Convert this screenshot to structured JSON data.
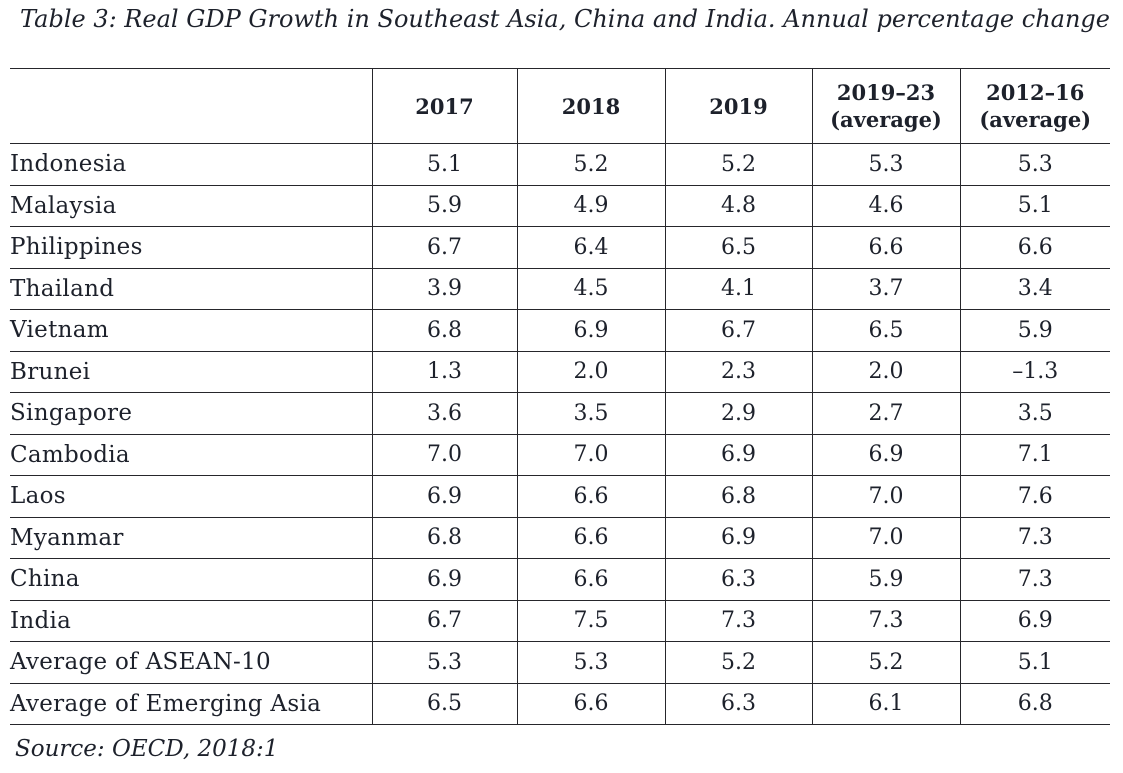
{
  "page": {
    "title": "Table 3: Real GDP Growth in Southeast Asia, China and India. Annual percentage change",
    "source": "Source: OECD, 2018:1"
  },
  "table": {
    "headers": [
      [
        "2017"
      ],
      [
        "2018"
      ],
      [
        "2019"
      ],
      [
        "2019–23",
        "(average)"
      ],
      [
        "2012–16",
        "(average)"
      ]
    ],
    "rows": [
      {
        "label": "Indonesia",
        "values": [
          "5.1",
          "5.2",
          "5.2",
          "5.3",
          "5.3"
        ]
      },
      {
        "label": "Malaysia",
        "values": [
          "5.9",
          "4.9",
          "4.8",
          "4.6",
          "5.1"
        ]
      },
      {
        "label": "Philippines",
        "values": [
          "6.7",
          "6.4",
          "6.5",
          "6.6",
          "6.6"
        ]
      },
      {
        "label": "Thailand",
        "values": [
          "3.9",
          "4.5",
          "4.1",
          "3.7",
          "3.4"
        ]
      },
      {
        "label": "Vietnam",
        "values": [
          "6.8",
          "6.9",
          "6.7",
          "6.5",
          "5.9"
        ]
      },
      {
        "label": "Brunei",
        "values": [
          "1.3",
          "2.0",
          "2.3",
          "2.0",
          "–1.3"
        ]
      },
      {
        "label": "Singapore",
        "values": [
          "3.6",
          "3.5",
          "2.9",
          "2.7",
          "3.5"
        ]
      },
      {
        "label": "Cambodia",
        "values": [
          "7.0",
          "7.0",
          "6.9",
          "6.9",
          "7.1"
        ]
      },
      {
        "label": "Laos",
        "values": [
          "6.9",
          "6.6",
          "6.8",
          "7.0",
          "7.6"
        ]
      },
      {
        "label": "Myanmar",
        "values": [
          "6.8",
          "6.6",
          "6.9",
          "7.0",
          "7.3"
        ]
      },
      {
        "label": "China",
        "values": [
          "6.9",
          "6.6",
          "6.3",
          "5.9",
          "7.3"
        ]
      },
      {
        "label": "India",
        "values": [
          "6.7",
          "7.5",
          "7.3",
          "7.3",
          "6.9"
        ]
      },
      {
        "label": "Average of ASEAN-10",
        "values": [
          "5.3",
          "5.3",
          "5.2",
          "5.2",
          "5.1"
        ]
      },
      {
        "label": "Average of Emerging Asia",
        "values": [
          "6.5",
          "6.6",
          "6.3",
          "6.1",
          "6.8"
        ]
      }
    ]
  },
  "chart_data": {
    "type": "table",
    "title": "Table 3: Real GDP Growth in Southeast Asia, China and India. Annual percentage change",
    "unit": "Annual percentage change",
    "columns": [
      "2017",
      "2018",
      "2019",
      "2019–23 (average)",
      "2012–16 (average)"
    ],
    "categories": [
      "Indonesia",
      "Malaysia",
      "Philippines",
      "Thailand",
      "Vietnam",
      "Brunei",
      "Singapore",
      "Cambodia",
      "Laos",
      "Myanmar",
      "China",
      "India",
      "Average of ASEAN-10",
      "Average of Emerging Asia"
    ],
    "series": [
      {
        "name": "2017",
        "values": [
          5.1,
          5.9,
          6.7,
          3.9,
          6.8,
          1.3,
          3.6,
          7.0,
          6.9,
          6.8,
          6.9,
          6.7,
          5.3,
          6.5
        ]
      },
      {
        "name": "2018",
        "values": [
          5.2,
          4.9,
          6.4,
          4.5,
          6.9,
          2.0,
          3.5,
          7.0,
          6.6,
          6.6,
          6.6,
          7.5,
          5.3,
          6.6
        ]
      },
      {
        "name": "2019",
        "values": [
          5.2,
          4.8,
          6.5,
          4.1,
          6.7,
          2.3,
          2.9,
          6.9,
          6.8,
          6.9,
          6.3,
          7.3,
          5.2,
          6.3
        ]
      },
      {
        "name": "2019–23 (average)",
        "values": [
          5.3,
          4.6,
          6.6,
          3.7,
          6.5,
          2.0,
          2.7,
          6.9,
          7.0,
          7.0,
          5.9,
          7.3,
          5.2,
          6.1
        ]
      },
      {
        "name": "2012–16 (average)",
        "values": [
          5.3,
          5.1,
          6.6,
          3.4,
          5.9,
          -1.3,
          3.5,
          7.1,
          7.6,
          7.3,
          7.3,
          6.9,
          5.1,
          6.8
        ]
      }
    ],
    "source": "Source: OECD, 2018:1"
  }
}
